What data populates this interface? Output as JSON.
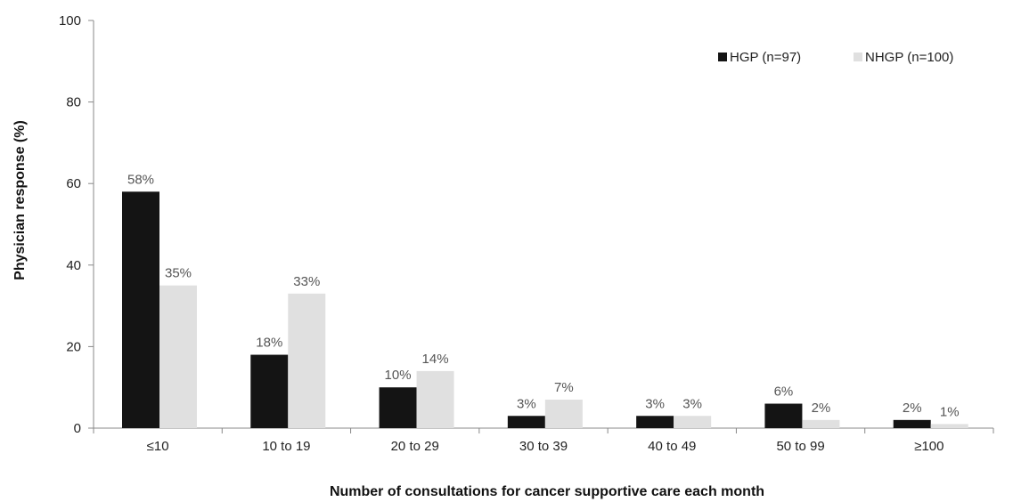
{
  "chart_data": {
    "type": "bar",
    "title": "",
    "xlabel": "Number of consultations for cancer supportive care each month",
    "ylabel": "Physician response (%)",
    "ylim": [
      0,
      100
    ],
    "yticks": [
      "0",
      "20",
      "40",
      "60",
      "80",
      "100"
    ],
    "grid": false,
    "legend_position": "top-right",
    "categories": [
      "≤10",
      "10 to 19",
      "20 to 29",
      "30 to 39",
      "40 to 49",
      "50 to 99",
      "≥100"
    ],
    "series": [
      {
        "name": "HGP (n=97)",
        "color": "#141414",
        "values": [
          58,
          18,
          10,
          3,
          3,
          6,
          2
        ],
        "labels": [
          "58%",
          "18%",
          "10%",
          "3%",
          "3%",
          "6%",
          "2%"
        ]
      },
      {
        "name": "NHGP (n=100)",
        "color": "#e0e0e0",
        "values": [
          35,
          33,
          14,
          7,
          3,
          2,
          1
        ],
        "labels": [
          "35%",
          "33%",
          "14%",
          "7%",
          "3%",
          "2%",
          "1%"
        ]
      }
    ]
  }
}
